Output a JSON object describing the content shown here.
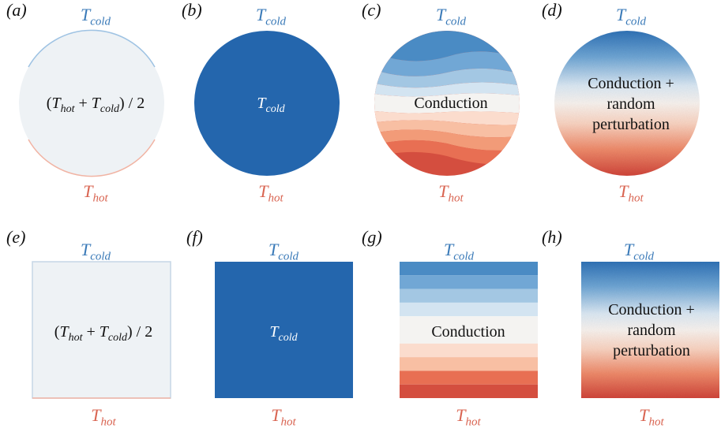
{
  "labels": {
    "panels": [
      "(a)",
      "(b)",
      "(c)",
      "(d)",
      "(e)",
      "(f)",
      "(g)",
      "(h)"
    ],
    "t_cold_symbol": "T",
    "t_cold_sub": "cold",
    "t_hot_symbol": "T",
    "t_hot_sub": "hot"
  },
  "conditions": {
    "mean": {
      "open": "(",
      "t1": "T",
      "t1_sub": "hot",
      "plus": " + ",
      "t2": "T",
      "t2_sub": "cold",
      "close": ") / 2"
    },
    "cold": {
      "t": "T",
      "t_sub": "cold"
    },
    "conduction": "Conduction",
    "perturb_line1": "Conduction +",
    "perturb_line2": "random",
    "perturb_line3": "perturbation"
  },
  "colors": {
    "cold": "#2466ad",
    "hot": "#d0483c",
    "mean_fill": "#eef2f5",
    "label_cold": "#3a7ab8",
    "label_hot": "#d96451",
    "bands": [
      "#4a8bc4",
      "#71a7d5",
      "#a3c7e3",
      "#d3e4f1",
      "#f4f3f1",
      "#fbdccd",
      "#f8bfa3",
      "#f29b78",
      "#e86f53",
      "#d44e3f"
    ]
  }
}
